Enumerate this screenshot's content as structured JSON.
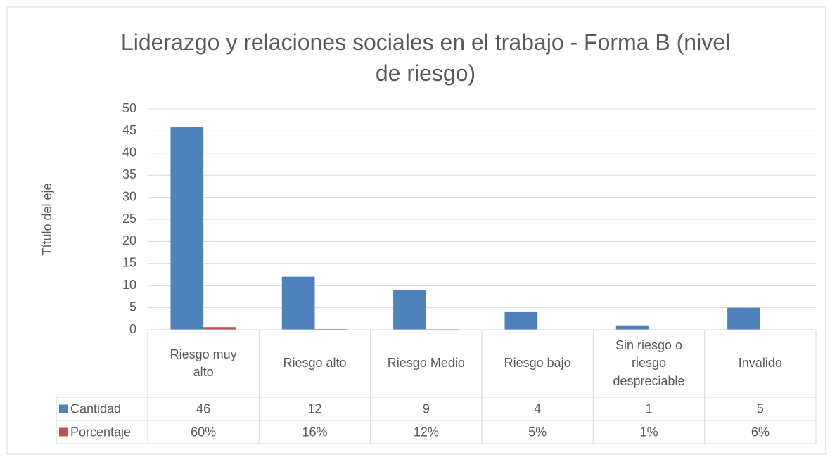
{
  "chart_data": {
    "type": "bar",
    "title": "Liderazgo y relaciones sociales en el trabajo - Forma B (nivel de riesgo)",
    "y_axis_label": "Título del eje",
    "categories": [
      "Riesgo muy alto",
      "Riesgo alto",
      "Riesgo Medio",
      "Riesgo bajo",
      "Sin riesgo o riesgo despreciable",
      "Invalido"
    ],
    "series": [
      {
        "name": "Cantidad",
        "color": "#4f81bd",
        "values": [
          46,
          12,
          9,
          4,
          1,
          5
        ]
      },
      {
        "name": "Porcentaje",
        "color": "#c0504d",
        "values": [
          0.6,
          0.16,
          0.12,
          0.05,
          0.01,
          0.06
        ],
        "value_labels": [
          "60%",
          "16%",
          "12%",
          "5%",
          "1%",
          "6%"
        ]
      }
    ],
    "ylim": [
      0,
      50
    ],
    "yticks": [
      0,
      5,
      10,
      15,
      20,
      25,
      30,
      35,
      40,
      45,
      50
    ],
    "grid": true,
    "data_table": true
  }
}
